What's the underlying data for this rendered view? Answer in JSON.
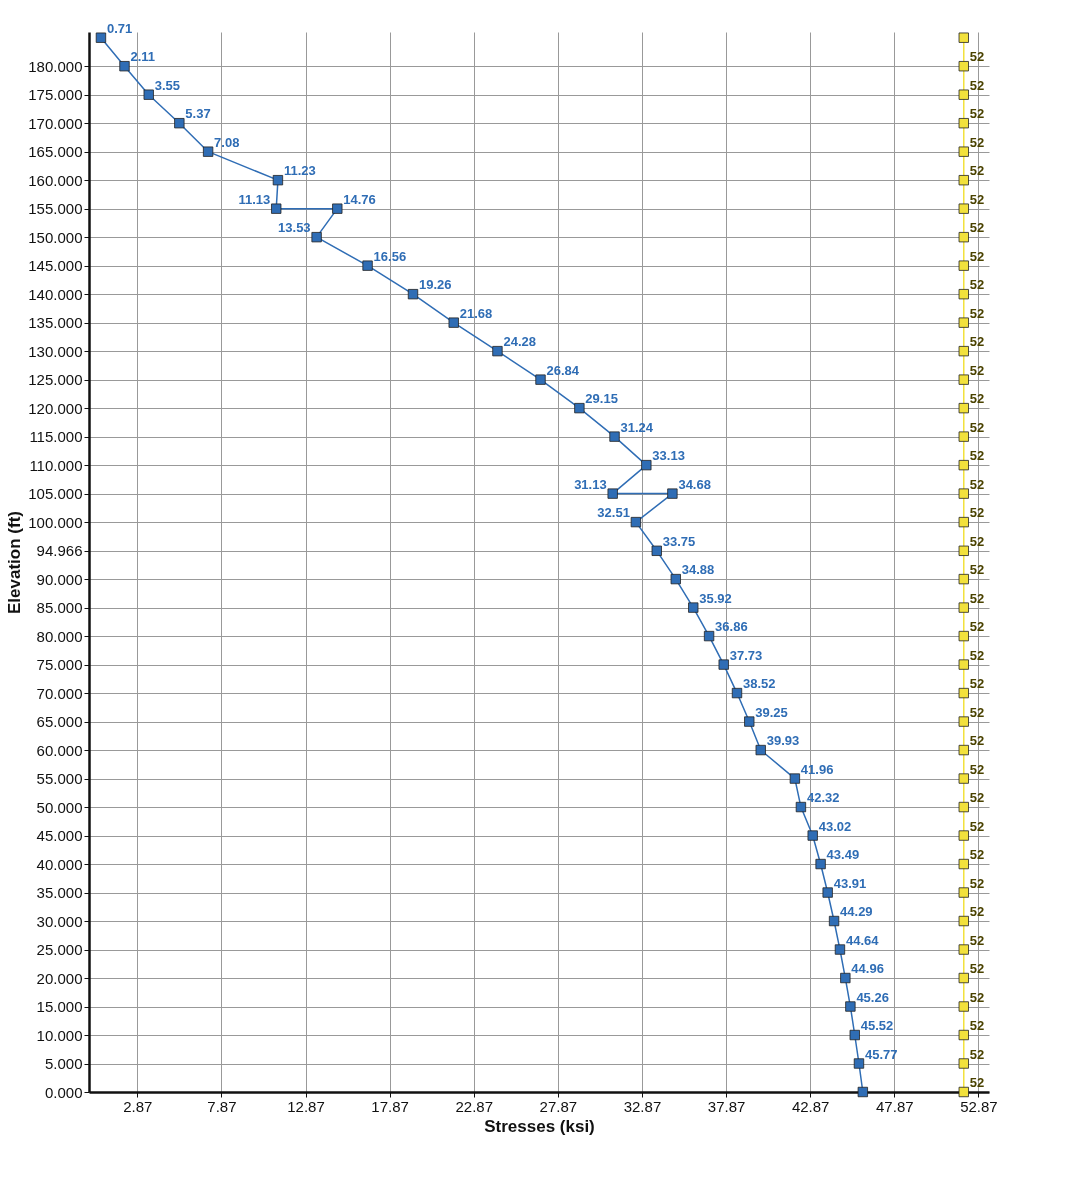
{
  "chart_data": {
    "type": "line",
    "orientation": "horizontal",
    "xlabel": "Stresses (ksi)",
    "ylabel": "Elevation (ft)",
    "grid": true,
    "marker": "square",
    "xlim": [
      0,
      53.5
    ],
    "xticks": [
      2.87,
      7.87,
      12.87,
      17.87,
      22.87,
      27.87,
      32.87,
      37.87,
      42.87,
      47.87,
      52.87
    ],
    "ylim": [
      0,
      186
    ],
    "yticks": [
      {
        "value": 0,
        "label": "0.000"
      },
      {
        "value": 5,
        "label": "5.000"
      },
      {
        "value": 10,
        "label": "10.000"
      },
      {
        "value": 15,
        "label": "15.000"
      },
      {
        "value": 20,
        "label": "20.000"
      },
      {
        "value": 25,
        "label": "25.000"
      },
      {
        "value": 30,
        "label": "30.000"
      },
      {
        "value": 35,
        "label": "35.000"
      },
      {
        "value": 40,
        "label": "40.000"
      },
      {
        "value": 45,
        "label": "45.000"
      },
      {
        "value": 50,
        "label": "50.000"
      },
      {
        "value": 55,
        "label": "55.000"
      },
      {
        "value": 60,
        "label": "60.000"
      },
      {
        "value": 65,
        "label": "65.000"
      },
      {
        "value": 70,
        "label": "70.000"
      },
      {
        "value": 75,
        "label": "75.000"
      },
      {
        "value": 80,
        "label": "80.000"
      },
      {
        "value": 85,
        "label": "85.000"
      },
      {
        "value": 90,
        "label": "90.000"
      },
      {
        "value": 94.966,
        "label": "94.966"
      },
      {
        "value": 100,
        "label": "100.000"
      },
      {
        "value": 105,
        "label": "105.000"
      },
      {
        "value": 110,
        "label": "110.000"
      },
      {
        "value": 115,
        "label": "115.000"
      },
      {
        "value": 120,
        "label": "120.000"
      },
      {
        "value": 125,
        "label": "125.000"
      },
      {
        "value": 130,
        "label": "130.000"
      },
      {
        "value": 135,
        "label": "135.000"
      },
      {
        "value": 140,
        "label": "140.000"
      },
      {
        "value": 145,
        "label": "145.000"
      },
      {
        "value": 150,
        "label": "150.000"
      },
      {
        "value": 155,
        "label": "155.000"
      },
      {
        "value": 160,
        "label": "160.000"
      },
      {
        "value": 165,
        "label": "165.000"
      },
      {
        "value": 170,
        "label": "170.000"
      },
      {
        "value": 175,
        "label": "175.000"
      },
      {
        "value": 180,
        "label": "180.000"
      }
    ],
    "series": [
      {
        "color": "#2f6db5",
        "x": [
          185,
          180,
          175,
          170,
          165,
          160,
          155,
          155,
          150,
          145,
          140,
          135,
          130,
          125,
          120,
          115,
          110,
          105,
          105,
          100,
          94.966,
          90,
          85,
          80,
          75,
          70,
          65,
          60,
          55,
          50,
          45,
          40,
          35,
          30,
          25,
          20,
          15,
          10,
          5,
          0
        ],
        "values": [
          0.71,
          2.11,
          3.55,
          5.37,
          7.08,
          11.23,
          11.13,
          14.76,
          13.53,
          16.56,
          19.26,
          21.68,
          24.28,
          26.84,
          29.15,
          31.24,
          33.13,
          31.13,
          34.68,
          32.51,
          33.75,
          34.88,
          35.92,
          36.86,
          37.73,
          38.52,
          39.25,
          39.93,
          41.96,
          42.32,
          43.02,
          43.49,
          43.91,
          44.29,
          44.64,
          44.96,
          45.26,
          45.52,
          45.77,
          46
        ],
        "value_labels": [
          "0.71",
          "2.11",
          "3.55",
          "5.37",
          "7.08",
          "11.23",
          "11.13",
          "14.76",
          "13.53",
          "16.56",
          "19.26",
          "21.68",
          "24.28",
          "26.84",
          "29.15",
          "31.24",
          "33.13",
          "31.13",
          "34.68",
          "32.51",
          "33.75",
          "34.88",
          "35.92",
          "36.86",
          "37.73",
          "38.52",
          "39.25",
          "39.93",
          "41.96",
          "42.32",
          "43.02",
          "43.49",
          "43.91",
          "44.29",
          "44.64",
          "44.96",
          "45.26",
          "45.52",
          "45.77",
          null
        ]
      },
      {
        "color": "#f2e13c",
        "x": [
          185,
          180,
          175,
          170,
          165,
          160,
          155,
          150,
          145,
          140,
          135,
          130,
          125,
          120,
          115,
          110,
          105,
          100,
          94.966,
          90,
          85,
          80,
          75,
          70,
          65,
          60,
          55,
          50,
          45,
          40,
          35,
          30,
          25,
          20,
          15,
          10,
          5,
          0
        ],
        "values": [
          52,
          52,
          52,
          52,
          52,
          52,
          52,
          52,
          52,
          52,
          52,
          52,
          52,
          52,
          52,
          52,
          52,
          52,
          52,
          52,
          52,
          52,
          52,
          52,
          52,
          52,
          52,
          52,
          52,
          52,
          52,
          52,
          52,
          52,
          52,
          52,
          52,
          52
        ],
        "value_labels": [
          null,
          "52",
          "52",
          "52",
          "52",
          "52",
          "52",
          "52",
          "52",
          "52",
          "52",
          "52",
          "52",
          "52",
          "52",
          "52",
          "52",
          "52",
          "52",
          "52",
          "52",
          "52",
          "52",
          "52",
          "52",
          "52",
          "52",
          "52",
          "52",
          "52",
          "52",
          "52",
          "52",
          "52",
          "52",
          "52",
          "52",
          "52"
        ]
      }
    ]
  }
}
